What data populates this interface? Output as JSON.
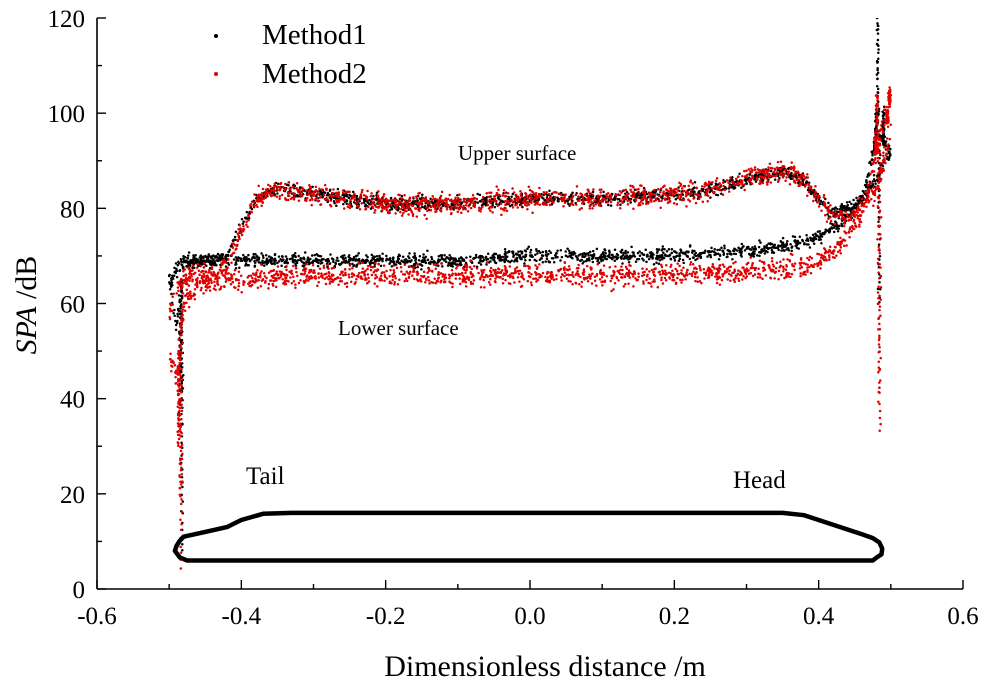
{
  "chart_data": {
    "type": "scatter",
    "title": "",
    "xlabel": "Dimensionless distance /m",
    "ylabel_italic": "SPA",
    "ylabel_rest": " /dB",
    "xlim": [
      -0.6,
      0.6
    ],
    "ylim": [
      0,
      120
    ],
    "x_ticks": [
      -0.6,
      -0.4,
      -0.2,
      0.0,
      0.2,
      0.4,
      0.6
    ],
    "x_tick_labels": [
      "-0.6",
      "-0.4",
      "-0.2",
      "0.0",
      "0.2",
      "0.4",
      "0.6"
    ],
    "y_ticks": [
      0,
      20,
      40,
      60,
      80,
      100,
      120
    ],
    "y_tick_labels": [
      "0",
      "20",
      "40",
      "60",
      "80",
      "100",
      "120"
    ],
    "legend_position": "top-left",
    "series": [
      {
        "name": "Method1",
        "color": "#000000",
        "upper_surface": {
          "x": [
            -0.5,
            -0.49,
            -0.48,
            -0.46,
            -0.44,
            -0.42,
            -0.4,
            -0.38,
            -0.35,
            -0.3,
            -0.2,
            -0.1,
            0.0,
            0.1,
            0.2,
            0.25,
            0.3,
            0.35,
            0.38,
            0.4,
            0.42,
            0.44,
            0.46,
            0.48,
            0.5
          ],
          "y": [
            64,
            67,
            69,
            69,
            69,
            70,
            76,
            82,
            84,
            83,
            81,
            81,
            82,
            82,
            83,
            84,
            86,
            88,
            86,
            82,
            79,
            80,
            82,
            86,
            92
          ]
        },
        "lower_surface": {
          "x": [
            -0.5,
            -0.49,
            -0.48,
            -0.46,
            -0.44,
            -0.42,
            -0.4,
            -0.3,
            -0.2,
            -0.1,
            0.0,
            0.1,
            0.2,
            0.3,
            0.35,
            0.38,
            0.4,
            0.42,
            0.44,
            0.46,
            0.47,
            0.48,
            0.5
          ],
          "y": [
            66,
            55,
            68,
            69,
            69,
            69,
            69,
            69,
            69,
            69,
            70,
            70,
            70,
            71,
            72,
            73,
            74,
            76,
            78,
            82,
            88,
            96,
            92
          ]
        },
        "peak_points": {
          "x": [
            -0.485,
            -0.483,
            -0.482,
            0.478,
            0.48,
            0.482,
            0.484,
            0.49
          ],
          "y": [
            35,
            40,
            8,
            92,
            100,
            120,
            60,
            101
          ]
        }
      },
      {
        "name": "Method2",
        "color": "#e00000",
        "upper_surface": {
          "x": [
            -0.5,
            -0.49,
            -0.48,
            -0.46,
            -0.44,
            -0.42,
            -0.4,
            -0.38,
            -0.35,
            -0.3,
            -0.2,
            -0.1,
            0.0,
            0.1,
            0.2,
            0.25,
            0.3,
            0.35,
            0.38,
            0.4,
            0.42,
            0.44,
            0.46,
            0.48,
            0.5
          ],
          "y": [
            58,
            62,
            65,
            66,
            66,
            68,
            75,
            82,
            84,
            83,
            81,
            81,
            82,
            82,
            83,
            84,
            86,
            88,
            86,
            82,
            78,
            78,
            80,
            84,
            96
          ]
        },
        "lower_surface": {
          "x": [
            -0.5,
            -0.49,
            -0.48,
            -0.46,
            -0.44,
            -0.42,
            -0.4,
            -0.3,
            -0.2,
            -0.1,
            0.0,
            0.1,
            0.2,
            0.3,
            0.35,
            0.38,
            0.4,
            0.42,
            0.44,
            0.46,
            0.47,
            0.48,
            0.5
          ],
          "y": [
            48,
            45,
            60,
            64,
            65,
            65,
            65,
            66,
            66,
            66,
            66,
            66,
            66,
            67,
            67,
            68,
            69,
            71,
            74,
            79,
            85,
            92,
            103
          ]
        },
        "peak_points": {
          "x": [
            -0.487,
            -0.485,
            -0.483,
            0.479,
            0.481,
            0.483,
            0.485,
            0.495,
            0.498
          ],
          "y": [
            30,
            20,
            5,
            95,
            104,
            40,
            33,
            98,
            105
          ]
        }
      }
    ],
    "annotations": {
      "upper_surface": "Upper surface",
      "lower_surface": "Lower surface",
      "tail": "Tail",
      "head": "Head"
    },
    "train_outline": {
      "x": [
        -0.492,
        -0.49,
        -0.486,
        -0.48,
        -0.45,
        -0.42,
        -0.4,
        -0.37,
        -0.33,
        -0.3,
        0.0,
        0.3,
        0.35,
        0.38,
        0.41,
        0.44,
        0.46,
        0.475,
        0.484,
        0.488,
        0.487,
        0.48,
        0.475,
        -0.475,
        -0.485,
        -0.492
      ],
      "y": [
        8,
        9,
        10,
        11,
        12,
        13,
        14.5,
        15.8,
        16,
        16,
        16,
        16,
        16,
        15.5,
        14,
        12.5,
        11.5,
        10.7,
        9.8,
        8.5,
        7.3,
        6.6,
        6,
        6,
        6.6,
        8
      ]
    }
  }
}
